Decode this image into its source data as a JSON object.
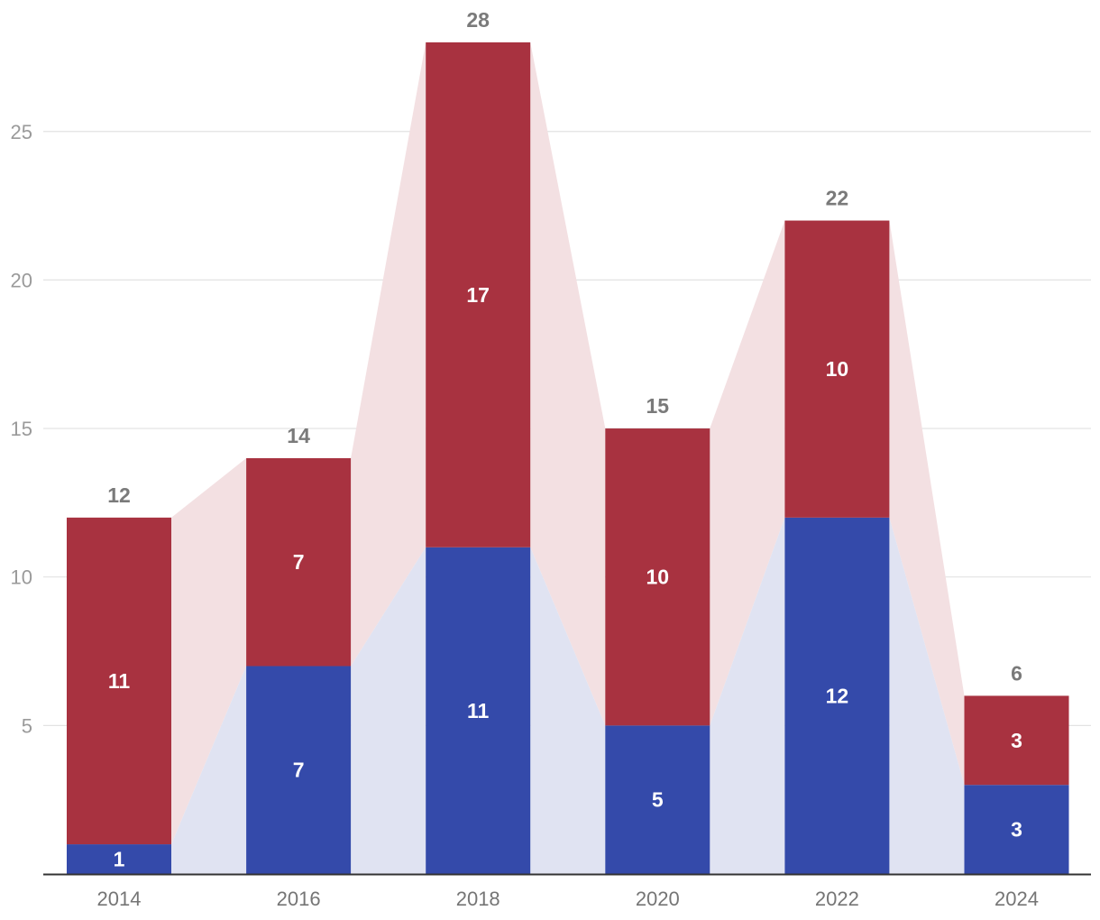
{
  "chart_data": {
    "type": "bar",
    "stacked": true,
    "categories": [
      "2014",
      "2016",
      "2018",
      "2020",
      "2022",
      "2024"
    ],
    "series": [
      {
        "values": [
          1,
          7,
          11,
          5,
          12,
          3
        ],
        "color": "#344aaa",
        "band_color": "#e0e3f2"
      },
      {
        "values": [
          11,
          7,
          17,
          10,
          10,
          3
        ],
        "color": "#a83240",
        "band_color": "#f3e0e2"
      }
    ],
    "totals": [
      12,
      14,
      28,
      15,
      22,
      6
    ],
    "ylim": [
      0,
      28
    ],
    "yticks": [
      5,
      10,
      15,
      20,
      25
    ],
    "grid": true,
    "title": "",
    "xlabel": "",
    "ylabel": ""
  }
}
